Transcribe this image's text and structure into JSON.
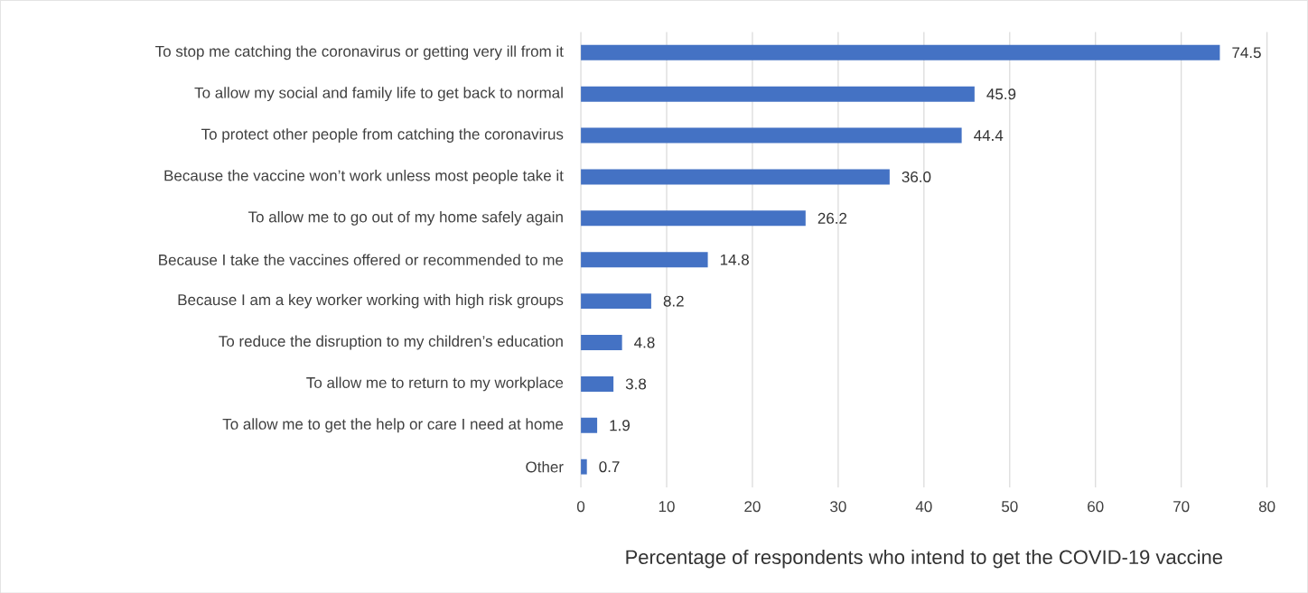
{
  "chart_data": {
    "type": "bar",
    "orientation": "horizontal",
    "xlabel": "Percentage of respondents who intend to get the COVID-19 vaccine",
    "categories": [
      "To stop me catching the coronavirus or getting very ill from it",
      "To allow my social and family life to get back to normal",
      "To protect other people from catching the coronavirus",
      "Because the vaccine won’t work unless most people take it",
      "To allow me to go out of my home safely again",
      "Because I take the vaccines offered or recommended to me",
      "Because I am a key worker working with high risk groups",
      "To reduce the disruption to my children’s education",
      "To allow me to return to my workplace",
      "To allow me to get the help or care I need at home",
      "Other"
    ],
    "values": [
      74.5,
      45.9,
      44.4,
      36.0,
      26.2,
      14.8,
      8.2,
      4.8,
      3.8,
      1.9,
      0.7
    ],
    "value_labels": [
      "74.5",
      "45.9",
      "44.4",
      "36.0",
      "26.2",
      "14.8",
      "8.2",
      "4.8",
      "3.8",
      "1.9",
      "0.7"
    ],
    "color": "#4472c4",
    "grid": "x",
    "xlim": [
      0,
      80
    ],
    "xticks": [
      0,
      10,
      20,
      30,
      40,
      50,
      60,
      70,
      80
    ]
  }
}
